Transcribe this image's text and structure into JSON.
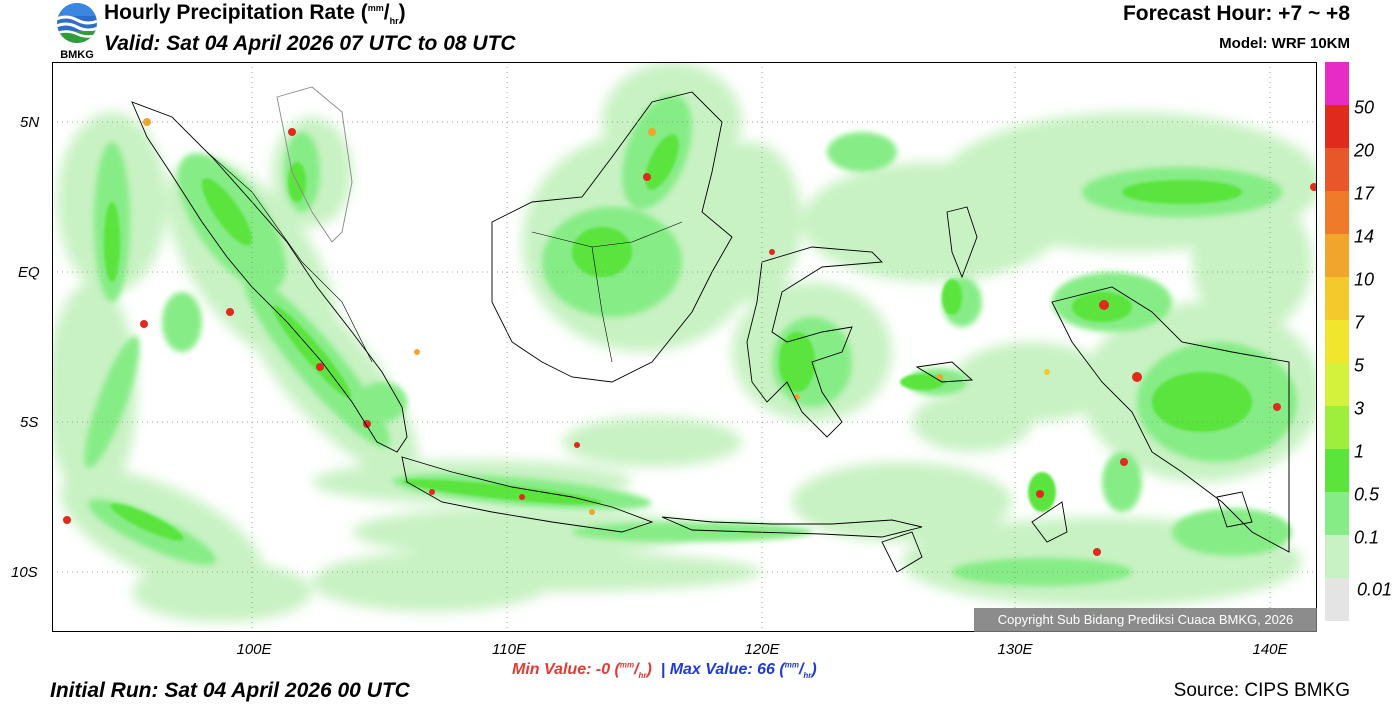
{
  "header": {
    "logo_text": "BMKG",
    "title_main": "Hourly Precipitation Rate (",
    "title_unit_num": "mm",
    "title_unit_den": "hr",
    "title_close": ")",
    "valid_text": "Valid: Sat 04 April 2026 07 UTC to 08 UTC",
    "forecast_hour": "Forecast Hour: +7 ~ +8",
    "model": "Model: WRF 10KM"
  },
  "map": {
    "lat_labels": [
      "5N",
      "EQ",
      "5S",
      "10S"
    ],
    "lon_labels": [
      "100E",
      "110E",
      "120E",
      "130E",
      "140E"
    ],
    "copyright": "Copyright Sub Bidang Prediksi Cuaca BMKG, 2026"
  },
  "colorbar": {
    "labels": [
      "50",
      "20",
      "17",
      "14",
      "10",
      "7",
      "5",
      "3",
      "1",
      "0.5",
      "0.1",
      "0.01"
    ],
    "colors": [
      "#e62cc4",
      "#e12a1e",
      "#e8572a",
      "#ee7a2a",
      "#f1a52c",
      "#f3c92c",
      "#f1e62d",
      "#d4f23b",
      "#9eef3b",
      "#5ae43c",
      "#86ec86",
      "#c8f2c3",
      "#e4e4e4"
    ]
  },
  "footer": {
    "min_label": "Min Value:  -0 (",
    "min_close": ")",
    "separator": "|",
    "max_label": "Max Value:  66 (",
    "max_close": ")",
    "unit_num": "mm",
    "unit_den": "hr",
    "initial_run": "Initial Run: Sat 04 April 2026 00 UTC",
    "source": "Source: CIPS BMKG"
  }
}
